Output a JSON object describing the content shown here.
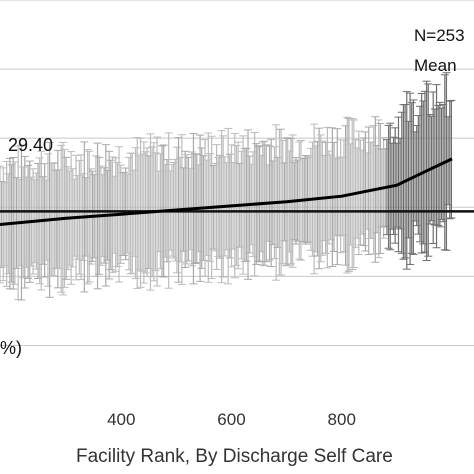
{
  "chart_data": {
    "type": "scatter",
    "xlabel": "Facility Rank, By Discharge Self Care",
    "x_ticks": [
      400,
      600,
      800
    ],
    "xlim": [
      180,
      1040
    ],
    "ylim": [
      5,
      60
    ],
    "grid": true,
    "annotations": {
      "n_text": "N=253",
      "mean_text": "Mean",
      "mean_value_text": "29.40",
      "partial_y_label": "%)"
    },
    "mean_line_y": 29.4,
    "series": [
      {
        "x": [
          180,
          300,
          400,
          500,
          600,
          700,
          800,
          900,
          960,
          1000
        ],
        "y": [
          27.5,
          28.4,
          29.0,
          29.6,
          30.2,
          30.8,
          31.6,
          33.2,
          35.5,
          37.0
        ]
      }
    ],
    "error_bar_halfwidth": 8.5
  }
}
